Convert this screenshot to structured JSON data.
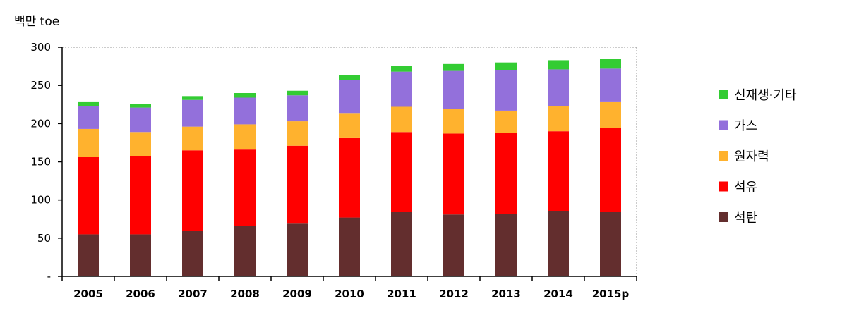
{
  "chart_data": {
    "type": "bar",
    "stacked": true,
    "unit_label": "백만 toe",
    "categories": [
      "2005",
      "2006",
      "2007",
      "2008",
      "2009",
      "2010",
      "2011",
      "2012",
      "2013",
      "2014",
      "2015p"
    ],
    "series": [
      {
        "name": "석탄",
        "color": "#632e2e",
        "values": [
          55,
          55,
          60,
          66,
          69,
          77,
          84,
          81,
          82,
          85,
          84
        ]
      },
      {
        "name": "석유",
        "color": "#ff0000",
        "values": [
          101,
          102,
          105,
          100,
          102,
          104,
          105,
          106,
          106,
          105,
          110
        ]
      },
      {
        "name": "원자력",
        "color": "#ffb22e",
        "values": [
          37,
          32,
          31,
          33,
          32,
          32,
          33,
          32,
          29,
          33,
          35
        ]
      },
      {
        "name": "가스",
        "color": "#9370db",
        "values": [
          30,
          32,
          35,
          35,
          34,
          44,
          46,
          50,
          53,
          48,
          43
        ]
      },
      {
        "name": "신재생·기타",
        "color": "#33cc33",
        "values": [
          6,
          5,
          5,
          6,
          6,
          7,
          8,
          9,
          10,
          12,
          13
        ]
      }
    ],
    "ylim": [
      0,
      300
    ],
    "yticks": [
      0,
      50,
      100,
      150,
      200,
      250,
      300
    ],
    "ytick_labels": [
      "-",
      "50",
      "100",
      "150",
      "200",
      "250",
      "300"
    ],
    "legend_order": [
      "신재생·기타",
      "가스",
      "원자력",
      "석유",
      "석탄"
    ],
    "legend_position": "right",
    "grid": false
  }
}
